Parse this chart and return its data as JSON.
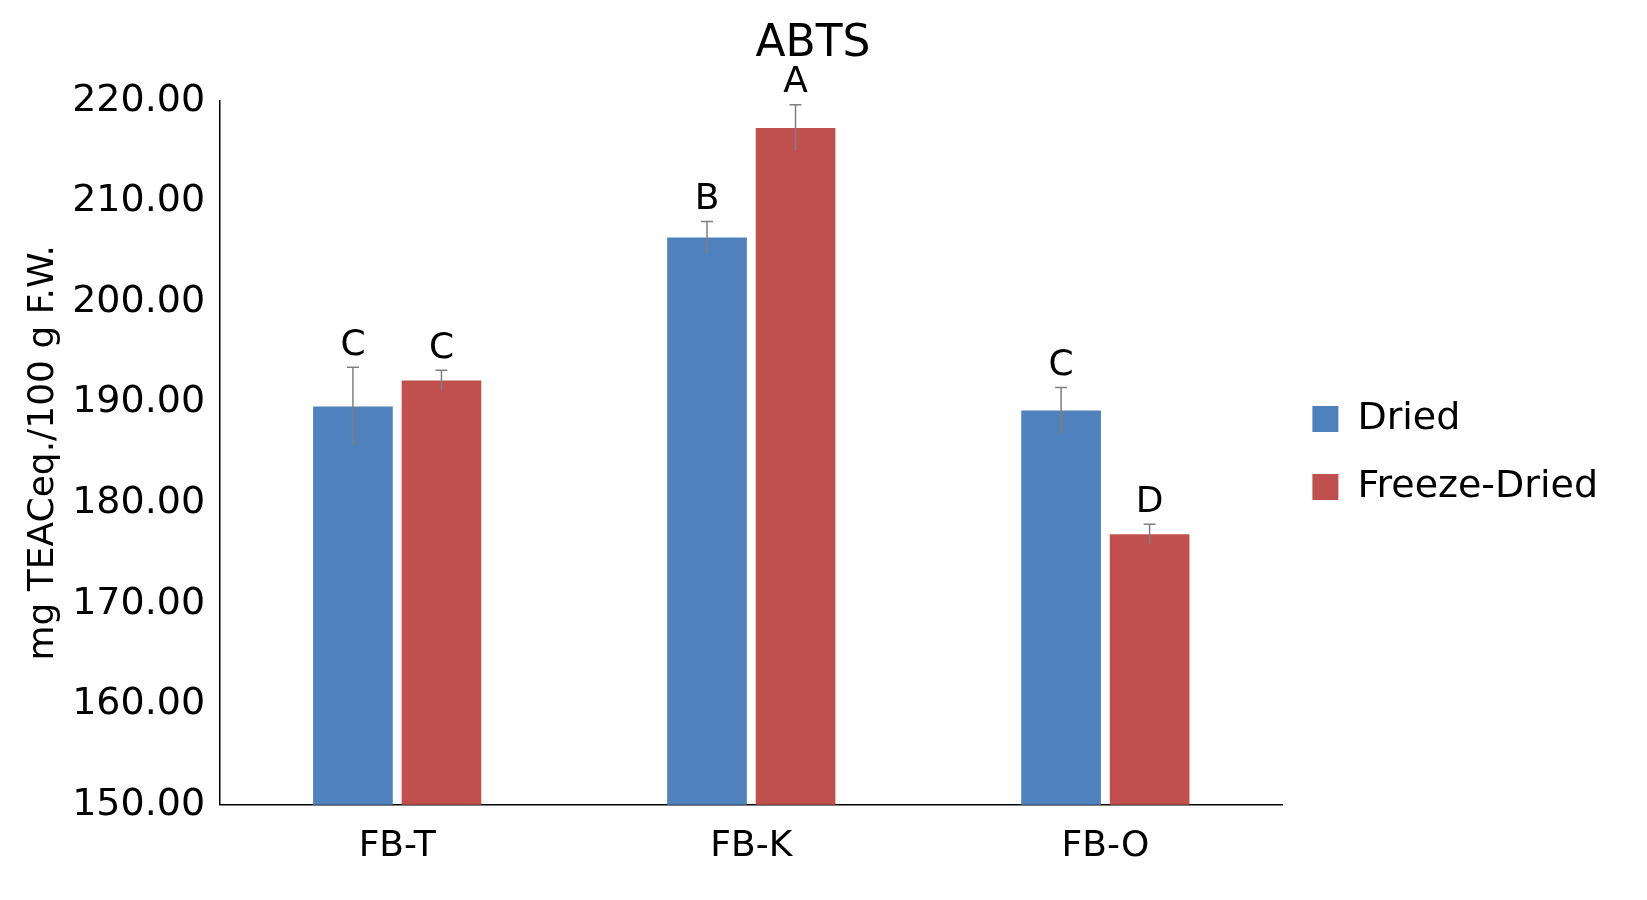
{
  "chart_data": {
    "type": "bar",
    "title": "ABTS",
    "ylabel": "mg TEACeq./100 g F.W.",
    "categories": [
      "FB-T",
      "FB-K",
      "FB-O"
    ],
    "series": [
      {
        "name": "Dried",
        "color": "#4f81bd",
        "values": [
          189.6,
          206.4,
          189.2
        ],
        "errors": [
          3.9,
          1.6,
          2.3
        ],
        "value_labels": [
          "C",
          "B",
          "C"
        ]
      },
      {
        "name": "Freeze-Dried",
        "color": "#c0504d",
        "values": [
          192.2,
          217.3,
          176.9
        ],
        "errors": [
          1.0,
          2.3,
          1.0
        ],
        "value_labels": [
          "C",
          "A",
          "D"
        ]
      }
    ],
    "ylim": [
      150,
      220
    ],
    "yticks": [
      {
        "value": 150,
        "label": "150.00"
      },
      {
        "value": 160,
        "label": "160.00"
      },
      {
        "value": 170,
        "label": "170.00"
      },
      {
        "value": 180,
        "label": "180.00"
      },
      {
        "value": 190,
        "label": "190.00"
      },
      {
        "value": 200,
        "label": "200.00"
      },
      {
        "value": 210,
        "label": "210.00"
      },
      {
        "value": 220,
        "label": "220.00"
      }
    ],
    "grid": false,
    "legend": "right"
  }
}
